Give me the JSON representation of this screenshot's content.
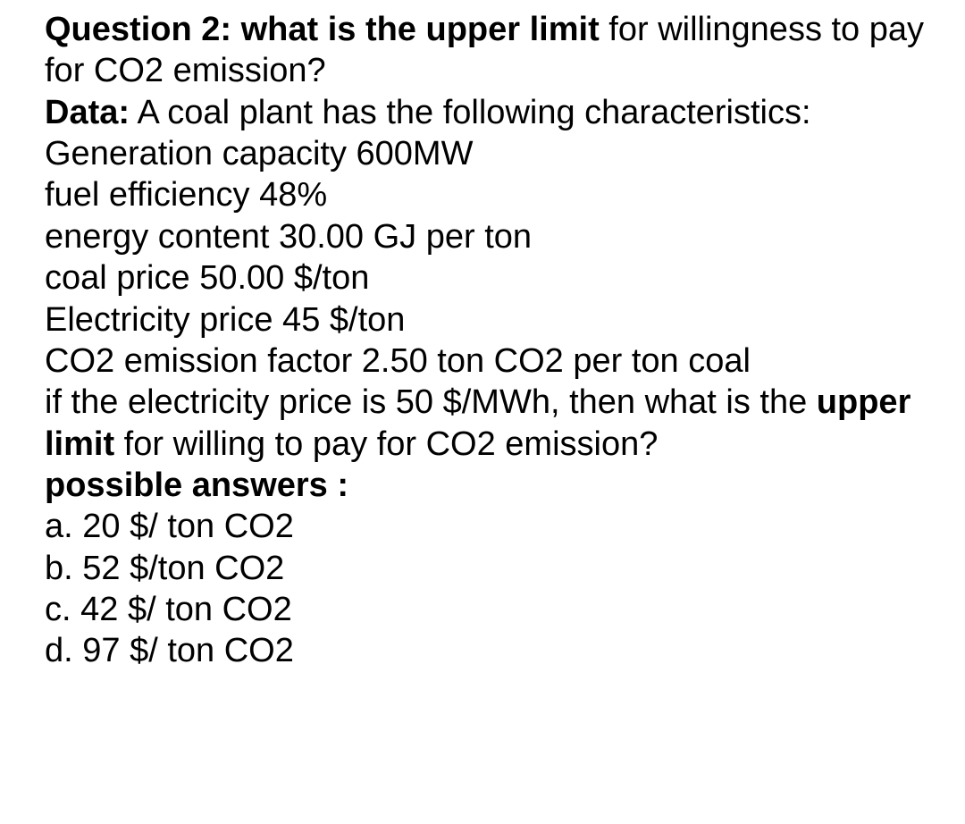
{
  "question": {
    "label_bold": "Question 2: what is the upper limit",
    "label_rest": " for willingness to pay for CO2 emission?"
  },
  "data_label": "Data:",
  "data_intro": " A coal plant has the following characteristics:",
  "characteristics": {
    "line1": "Generation capacity 600MW",
    "line2": "fuel efficiency 48%",
    "line3": "energy content 30.00 GJ per ton",
    "line4": "coal price 50.00 $/ton",
    "line5": "Electricity price 45 $/ton",
    "line6": "CO2 emission factor 2.50 ton CO2 per ton coal"
  },
  "scenario": {
    "part1": "if the electricity price is 50 $/MWh, then what is the ",
    "bold": "upper limit",
    "part2": " for willing to pay for CO2 emission?"
  },
  "answers_label": "possible answers :",
  "answers": {
    "a": "a. 20 $/ ton CO2",
    "b": "b. 52 $/ton CO2",
    "c": "c. 42 $/ ton CO2",
    "d": "d. 97 $/ ton CO2"
  }
}
